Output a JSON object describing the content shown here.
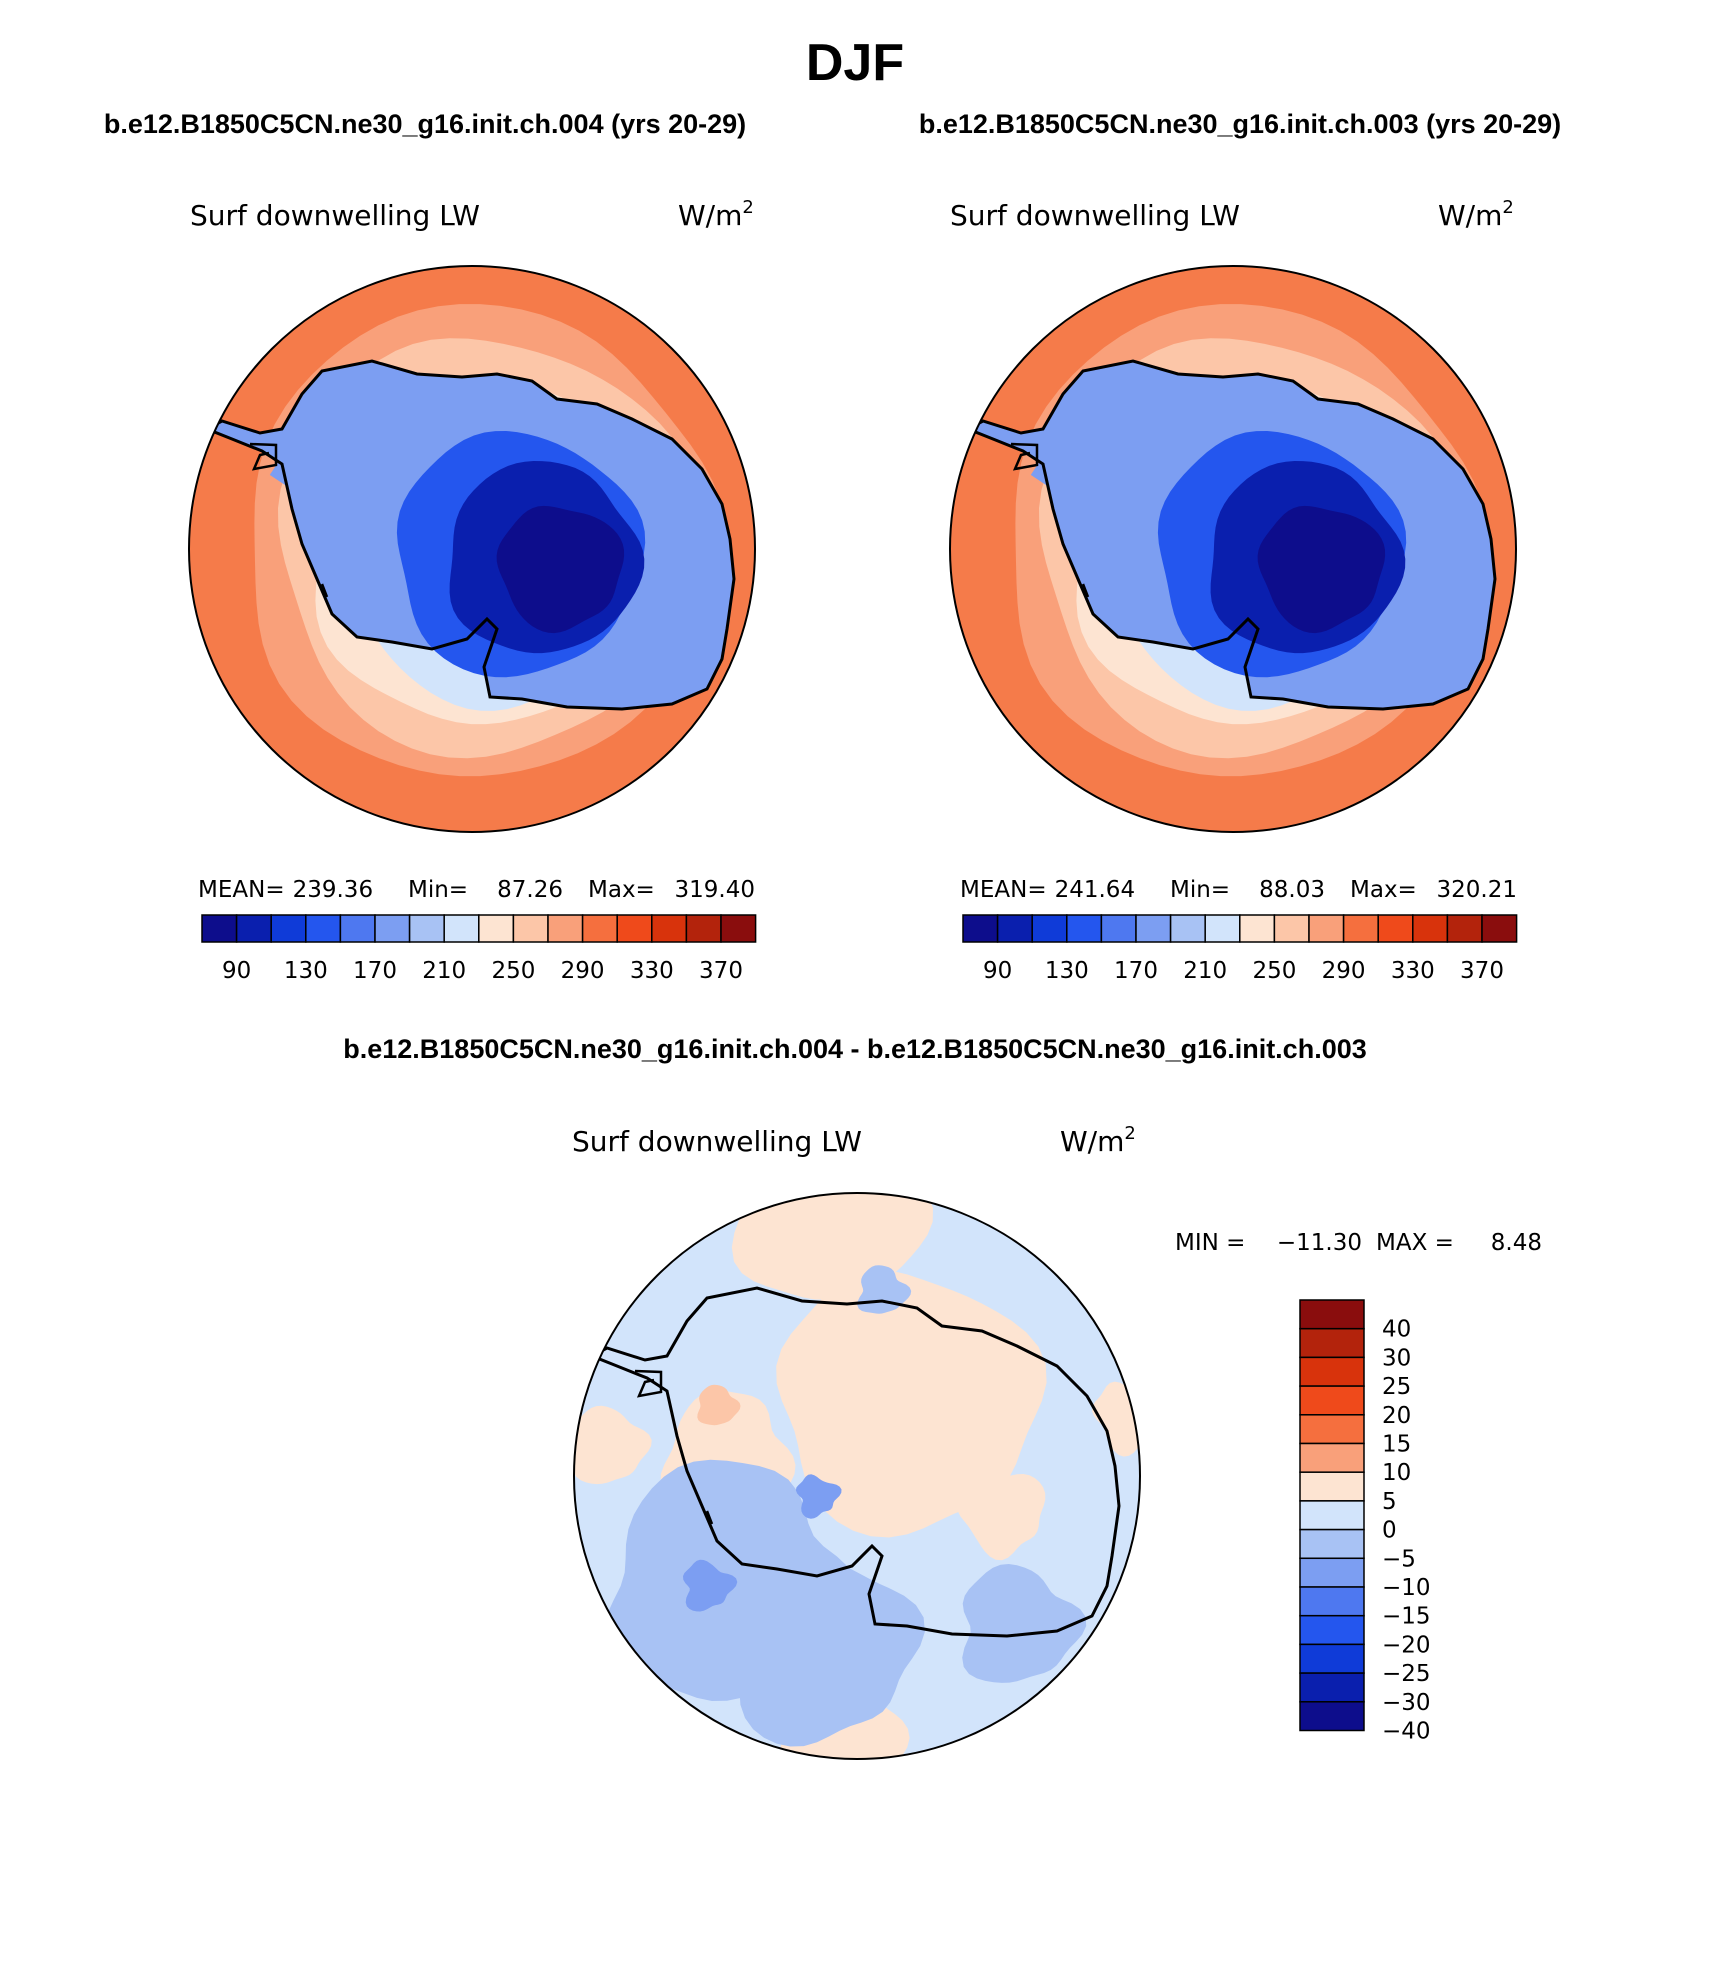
{
  "chart_data": {
    "type": "map",
    "season": "DJF",
    "cases": {
      "case_a": "b.e12.B1850C5CN.ne30_g16.init.ch.004 (yrs 20-29)",
      "case_b": "b.e12.B1850C5CN.ne30_g16.init.ch.003 (yrs 20-29)",
      "difference": "b.e12.B1850C5CN.ne30_g16.init.ch.004 - b.e12.B1850C5CN.ne30_g16.init.ch.003"
    },
    "panels": [
      {
        "id": "case_a",
        "variable": "Surf downwelling LW",
        "units_base": "W/m",
        "units_exp": "2",
        "stats": {
          "mean_label": "MEAN=",
          "mean": "239.36",
          "min_label": "Min=",
          "min": "87.26",
          "max_label": "Max=",
          "max": "319.40"
        }
      },
      {
        "id": "case_b",
        "variable": "Surf downwelling LW",
        "units_base": "W/m",
        "units_exp": "2",
        "stats": {
          "mean_label": "MEAN=",
          "mean": "241.64",
          "min_label": "Min=",
          "min": "88.03",
          "max_label": "Max=",
          "max": "320.21"
        }
      },
      {
        "id": "difference",
        "variable": "Surf downwelling LW",
        "units_base": "W/m",
        "units_exp": "2",
        "stats": {
          "min_label": "MIN =",
          "min": "−11.30",
          "max_label": "MAX =",
          "max": "8.48"
        }
      }
    ],
    "colorbar_abs": {
      "orientation": "horizontal",
      "colors": [
        "#0d0d8c",
        "#0a1fae",
        "#0f3bd8",
        "#2456ee",
        "#4e78f0",
        "#7c9ef2",
        "#a8c2f4",
        "#d2e4fb",
        "#fde4d2",
        "#fcc6a8",
        "#f9a07a",
        "#f56f3e",
        "#ef4a1b",
        "#d8330c",
        "#b3230c",
        "#8a0d0d"
      ],
      "tick_labels": [
        "90",
        "130",
        "170",
        "210",
        "250",
        "290",
        "330",
        "370"
      ]
    },
    "colorbar_diff": {
      "orientation": "vertical",
      "colors_top_to_bottom": [
        "#8a0d0d",
        "#b3230c",
        "#d8330c",
        "#ef4a1b",
        "#f56f3e",
        "#f9a07a",
        "#fde4d2",
        "#d2e4fb",
        "#a8c2f4",
        "#7c9ef2",
        "#4e78f0",
        "#2456ee",
        "#0f3bd8",
        "#0a1fae",
        "#0d0d8c"
      ],
      "tick_labels": [
        "40",
        "30",
        "25",
        "20",
        "15",
        "10",
        "5",
        "0",
        "−5",
        "−10",
        "−15",
        "−20",
        "−25",
        "−30",
        "−40"
      ]
    },
    "map_colors": {
      "ocean_outer": "#f57b4a",
      "ocean_mid": "#f9a07a",
      "ocean_inner": "#fcc6a8",
      "coast_ring": "#fde4d2",
      "ice_edge": "#d2e4fb",
      "plateau_1": "#7c9ef2",
      "plateau_2": "#2456ee",
      "plateau_3": "#0a1fae",
      "plateau_core": "#0d0d8c",
      "diff_base": "#d2e4fb",
      "diff_neg": "#a8c2f4",
      "diff_neg2": "#7c9ef2",
      "diff_pos": "#fde4d2",
      "diff_pos2": "#fcc6a8"
    }
  }
}
